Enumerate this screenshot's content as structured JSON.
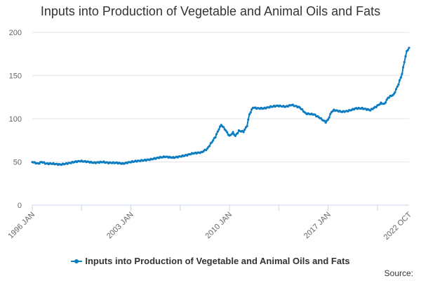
{
  "chart_data": {
    "type": "line",
    "title": "Inputs into Production of Vegetable and Animal Oils and Fats",
    "xlabel": "",
    "ylabel": "",
    "ylim": [
      0,
      200
    ],
    "yticks": [
      0,
      50,
      100,
      150,
      200
    ],
    "xticks": [
      "1996 JAN",
      "2003 JAN",
      "2010 JAN",
      "2017 JAN",
      "2022 OCT"
    ],
    "grid": true,
    "legend_position": "bottom",
    "series": [
      {
        "name": "Inputs into Production of Vegetable and Animal Oils and Fats",
        "color": "#0c7cc0",
        "points": [
          [
            "1996-01",
            50
          ],
          [
            "1996-06",
            48
          ],
          [
            "1996-09",
            50
          ],
          [
            "1997-01",
            48
          ],
          [
            "1997-06",
            48
          ],
          [
            "1998-01",
            47
          ],
          [
            "1998-06",
            48
          ],
          [
            "1999-01",
            50
          ],
          [
            "1999-06",
            51
          ],
          [
            "2000-01",
            50
          ],
          [
            "2000-06",
            49
          ],
          [
            "2001-01",
            50
          ],
          [
            "2001-06",
            49
          ],
          [
            "2002-01",
            49
          ],
          [
            "2002-06",
            48
          ],
          [
            "2003-01",
            50
          ],
          [
            "2003-06",
            51
          ],
          [
            "2004-01",
            52
          ],
          [
            "2004-06",
            53
          ],
          [
            "2005-01",
            55
          ],
          [
            "2005-06",
            56
          ],
          [
            "2006-01",
            55
          ],
          [
            "2006-06",
            56
          ],
          [
            "2007-01",
            58
          ],
          [
            "2007-06",
            60
          ],
          [
            "2008-01",
            61
          ],
          [
            "2008-06",
            65
          ],
          [
            "2009-01",
            79
          ],
          [
            "2009-04",
            88
          ],
          [
            "2009-06",
            93
          ],
          [
            "2009-09",
            88
          ],
          [
            "2010-01",
            80
          ],
          [
            "2010-04",
            84
          ],
          [
            "2010-06",
            80
          ],
          [
            "2010-09",
            86
          ],
          [
            "2011-01",
            85
          ],
          [
            "2011-04",
            92
          ],
          [
            "2011-06",
            105
          ],
          [
            "2011-09",
            113
          ],
          [
            "2012-01",
            112
          ],
          [
            "2012-06",
            112
          ],
          [
            "2013-01",
            114
          ],
          [
            "2013-06",
            115
          ],
          [
            "2014-01",
            114
          ],
          [
            "2014-06",
            116
          ],
          [
            "2015-01",
            113
          ],
          [
            "2015-06",
            106
          ],
          [
            "2016-01",
            105
          ],
          [
            "2016-06",
            101
          ],
          [
            "2016-11",
            96
          ],
          [
            "2017-01",
            99
          ],
          [
            "2017-04",
            108
          ],
          [
            "2017-06",
            110
          ],
          [
            "2018-01",
            108
          ],
          [
            "2018-06",
            109
          ],
          [
            "2019-01",
            112
          ],
          [
            "2019-06",
            112
          ],
          [
            "2020-01",
            110
          ],
          [
            "2020-06",
            114
          ],
          [
            "2020-10",
            118
          ],
          [
            "2021-01",
            117
          ],
          [
            "2021-04",
            124
          ],
          [
            "2021-06",
            126
          ],
          [
            "2021-09",
            128
          ],
          [
            "2022-01",
            140
          ],
          [
            "2022-04",
            152
          ],
          [
            "2022-06",
            166
          ],
          [
            "2022-08",
            178
          ],
          [
            "2022-10",
            182
          ]
        ]
      }
    ]
  },
  "source_label": "Source:"
}
